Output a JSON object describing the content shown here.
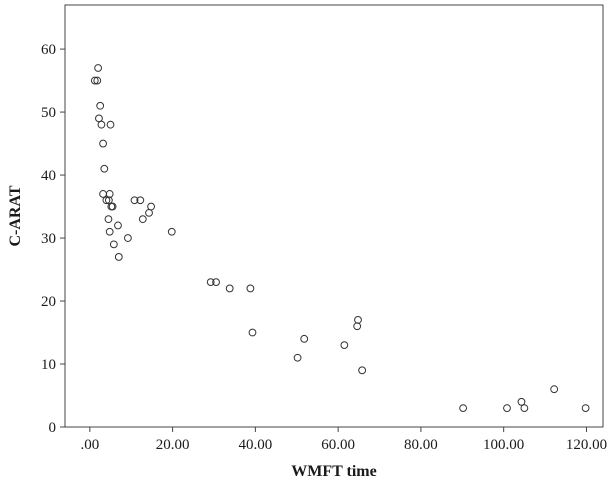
{
  "chart_data": {
    "type": "scatter",
    "title": "",
    "xlabel": "WMFT time",
    "ylabel": "C-ARAT",
    "xlim": [
      -6,
      124
    ],
    "ylim": [
      0,
      67
    ],
    "x_ticks": [
      0,
      20,
      40,
      60,
      80,
      100,
      120
    ],
    "x_tick_labels": [
      ".00",
      "20.00",
      "40.00",
      "60.00",
      "80.00",
      "100.00",
      "120.00"
    ],
    "y_ticks": [
      0,
      10,
      20,
      30,
      40,
      50,
      60
    ],
    "y_tick_labels": [
      "0",
      "10",
      "20",
      "30",
      "40",
      "50",
      "60"
    ],
    "grid": false,
    "legend": "none",
    "marker": "open-circle",
    "series": [
      {
        "points": [
          {
            "x": 1.2,
            "y": 55
          },
          {
            "x": 1.8,
            "y": 55
          },
          {
            "x": 2.0,
            "y": 57
          },
          {
            "x": 2.5,
            "y": 51
          },
          {
            "x": 2.2,
            "y": 49
          },
          {
            "x": 2.8,
            "y": 48
          },
          {
            "x": 5.0,
            "y": 48
          },
          {
            "x": 3.2,
            "y": 45
          },
          {
            "x": 3.5,
            "y": 41
          },
          {
            "x": 3.2,
            "y": 37
          },
          {
            "x": 4.8,
            "y": 37
          },
          {
            "x": 4.0,
            "y": 36
          },
          {
            "x": 4.6,
            "y": 36
          },
          {
            "x": 5.2,
            "y": 35
          },
          {
            "x": 5.5,
            "y": 35
          },
          {
            "x": 4.5,
            "y": 33
          },
          {
            "x": 6.8,
            "y": 32
          },
          {
            "x": 4.8,
            "y": 31
          },
          {
            "x": 9.2,
            "y": 30
          },
          {
            "x": 5.8,
            "y": 29
          },
          {
            "x": 7.0,
            "y": 27
          },
          {
            "x": 10.8,
            "y": 36
          },
          {
            "x": 12.2,
            "y": 36
          },
          {
            "x": 14.8,
            "y": 35
          },
          {
            "x": 14.3,
            "y": 34
          },
          {
            "x": 12.8,
            "y": 33
          },
          {
            "x": 19.8,
            "y": 31
          },
          {
            "x": 29.2,
            "y": 23
          },
          {
            "x": 30.5,
            "y": 23
          },
          {
            "x": 33.8,
            "y": 22
          },
          {
            "x": 38.8,
            "y": 22
          },
          {
            "x": 39.3,
            "y": 15
          },
          {
            "x": 50.2,
            "y": 11
          },
          {
            "x": 51.8,
            "y": 14
          },
          {
            "x": 61.5,
            "y": 13
          },
          {
            "x": 64.8,
            "y": 17
          },
          {
            "x": 64.6,
            "y": 16
          },
          {
            "x": 65.8,
            "y": 9
          },
          {
            "x": 90.2,
            "y": 3
          },
          {
            "x": 100.8,
            "y": 3
          },
          {
            "x": 104.3,
            "y": 4
          },
          {
            "x": 105.0,
            "y": 3
          },
          {
            "x": 112.2,
            "y": 6
          },
          {
            "x": 119.8,
            "y": 3
          }
        ]
      }
    ]
  }
}
